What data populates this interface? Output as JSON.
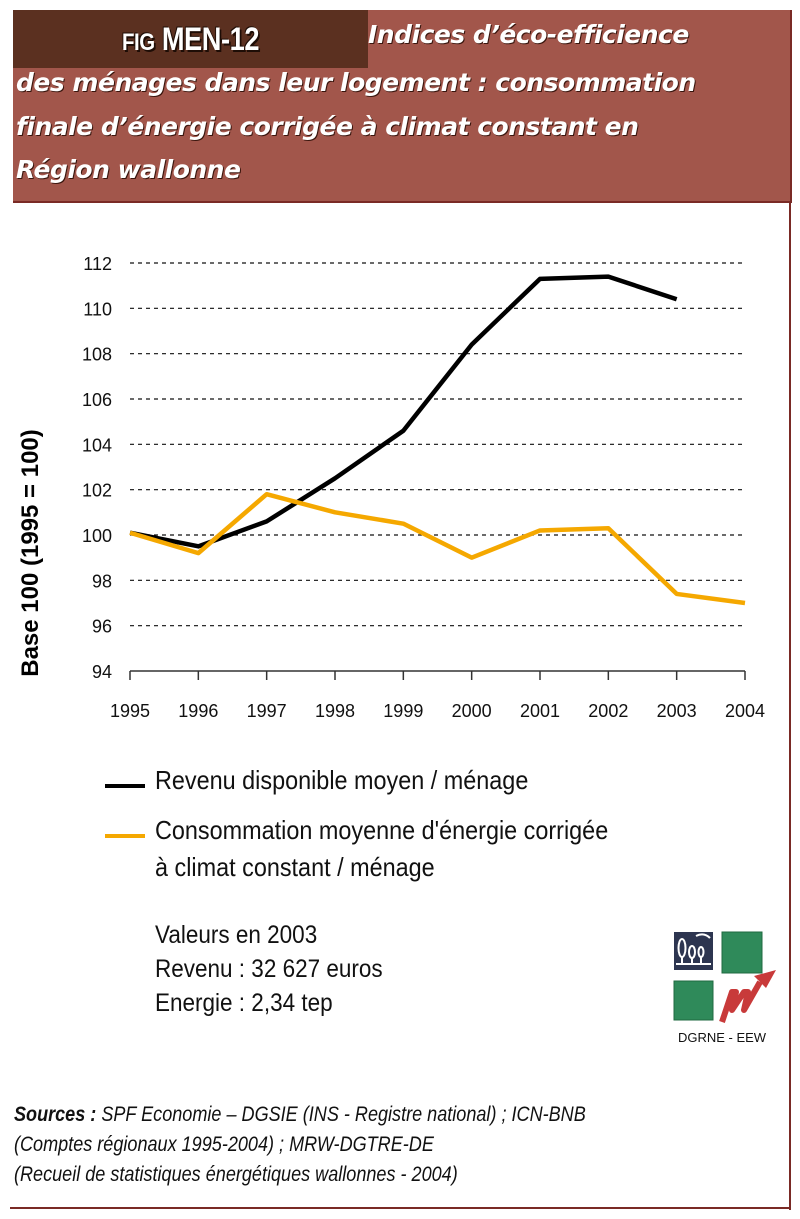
{
  "header": {
    "fig_prefix": "Fig",
    "fig_id": "MEN-12",
    "title_lines": [
      "Indices d’éco-efficience",
      "des ménages dans leur logement : consommation",
      "finale d’énergie corrigée à climat constant en",
      "Région wallonne"
    ],
    "colors": {
      "fig_box": "#5b3020",
      "title_box": "#a2564b",
      "border": "#7a2a25"
    }
  },
  "chart_data": {
    "type": "line",
    "title": "Indices d’éco-efficience des ménages dans leur logement : consommation finale d’énergie corrigée à climat constant en Région wallonne",
    "xlabel": "",
    "ylabel": "Base 100 (1995 = 100)",
    "x": [
      1995,
      1996,
      1997,
      1998,
      1999,
      2000,
      2001,
      2002,
      2003,
      2004
    ],
    "x_tick_labels": [
      "1995",
      "1996",
      "1997",
      "1998",
      "1999",
      "2000",
      "2001",
      "2002",
      "2003",
      "2004"
    ],
    "y_ticks": [
      94,
      96,
      98,
      100,
      102,
      104,
      106,
      108,
      110,
      112
    ],
    "y_tick_labels": [
      "94",
      "96",
      "98",
      "100",
      "102",
      "104",
      "106",
      "108",
      "110",
      "112"
    ],
    "ylim": [
      94,
      112
    ],
    "grid": "horizontal-dashed",
    "legend_position": "bottom",
    "series": [
      {
        "name": "Revenu disponible moyen / ménage",
        "color": "#000000",
        "values": [
          100.1,
          99.5,
          100.6,
          102.5,
          104.6,
          108.4,
          111.3,
          111.4,
          110.4,
          null
        ]
      },
      {
        "name": "Consommation moyenne d'énergie corrigée à climat constant / ménage",
        "color": "#f5a800",
        "values": [
          100.1,
          99.2,
          101.8,
          101.0,
          100.5,
          99.0,
          100.2,
          100.3,
          97.4,
          97.0
        ]
      }
    ]
  },
  "legend": {
    "items": [
      {
        "lines": [
          "Revenu disponible moyen / ménage"
        ],
        "color": "#000000"
      },
      {
        "lines": [
          "Consommation moyenne d'énergie corrigée",
          "à climat constant / ménage"
        ],
        "color": "#f5a800"
      }
    ]
  },
  "values_2003": {
    "title": "Valeurs en 2003",
    "revenu": "Revenu : 32 627 euros",
    "energie": "Energie : 2,34 tep"
  },
  "logo": {
    "label": "DGRNE - EEW",
    "icon": "dgrne-eew-logo-icon"
  },
  "sources": {
    "label": "Sources :",
    "line1": " SPF Economie – DGSIE (INS - Registre national) ; ICN-BNB",
    "line2": "(Comptes régionaux 1995-2004) ; MRW-DGTRE-DE",
    "line3": "(Recueil de statistiques énergétiques wallonnes - 2004)"
  }
}
